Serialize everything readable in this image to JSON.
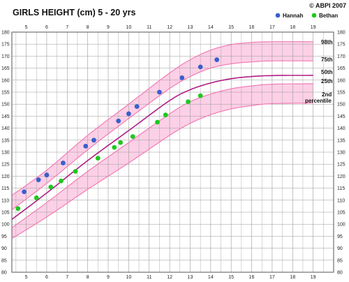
{
  "chart_data": {
    "type": "scatter",
    "title": "GIRLS HEIGHT (cm)  5 - 20 yrs",
    "copyright": "© ABPI 2007",
    "x_ticks": [
      5,
      6,
      7,
      8,
      9,
      10,
      11,
      12,
      13,
      14,
      15,
      16,
      17,
      18,
      19
    ],
    "y_ticks": [
      80,
      85,
      90,
      95,
      100,
      105,
      110,
      115,
      120,
      125,
      130,
      135,
      140,
      145,
      150,
      155,
      160,
      165,
      170,
      175,
      180
    ],
    "xlim": [
      4.3,
      20
    ],
    "ylim": [
      80,
      180
    ],
    "grid": true,
    "legend_position": "top-right",
    "percentile_labels": [
      "98th",
      "75th",
      "50th",
      "25th",
      "2nd",
      "percentile"
    ],
    "series": [
      {
        "name": "Hannah",
        "color": "#3a5fcd",
        "points": [
          [
            4.9,
            113.5
          ],
          [
            5.6,
            118.5
          ],
          [
            6.0,
            120.5
          ],
          [
            6.8,
            125.5
          ],
          [
            7.9,
            132.5
          ],
          [
            8.3,
            135
          ],
          [
            9.5,
            143
          ],
          [
            10.0,
            146
          ],
          [
            10.4,
            149
          ],
          [
            11.5,
            155
          ],
          [
            12.6,
            161
          ],
          [
            13.5,
            165.5
          ],
          [
            14.3,
            168.5
          ]
        ]
      },
      {
        "name": "Bethan",
        "color": "#1ec81e",
        "points": [
          [
            4.6,
            106.5
          ],
          [
            5.5,
            111
          ],
          [
            6.2,
            115.5
          ],
          [
            6.7,
            118
          ],
          [
            7.4,
            122
          ],
          [
            8.5,
            127.5
          ],
          [
            9.3,
            132
          ],
          [
            9.6,
            134
          ],
          [
            10.2,
            136.5
          ],
          [
            11.4,
            142.5
          ],
          [
            11.8,
            145.5
          ],
          [
            12.9,
            151
          ],
          [
            13.5,
            153.5
          ]
        ]
      }
    ],
    "percentile_curves": {
      "p98": [
        [
          4.3,
          112
        ],
        [
          6,
          122.5
        ],
        [
          8,
          137
        ],
        [
          10,
          150
        ],
        [
          12,
          163
        ],
        [
          13,
          168.5
        ],
        [
          14,
          172.5
        ],
        [
          15,
          174.8
        ],
        [
          16,
          175.7
        ],
        [
          17,
          176
        ],
        [
          19,
          176
        ]
      ],
      "p75": [
        [
          4.3,
          106
        ],
        [
          6,
          117
        ],
        [
          8,
          131
        ],
        [
          10,
          144
        ],
        [
          12,
          156.5
        ],
        [
          13,
          161.5
        ],
        [
          14,
          165
        ],
        [
          15,
          166.8
        ],
        [
          16,
          167.6
        ],
        [
          17,
          168
        ],
        [
          19,
          168
        ]
      ],
      "p50": [
        [
          4.3,
          102
        ],
        [
          6,
          113
        ],
        [
          8,
          126.5
        ],
        [
          10,
          139
        ],
        [
          12,
          151.5
        ],
        [
          13,
          156
        ],
        [
          14,
          158.8
        ],
        [
          15,
          160.6
        ],
        [
          16,
          161.5
        ],
        [
          17,
          161.9
        ],
        [
          19,
          162
        ]
      ],
      "p25": [
        [
          4.3,
          98.5
        ],
        [
          6,
          109
        ],
        [
          8,
          122
        ],
        [
          10,
          134
        ],
        [
          12,
          146
        ],
        [
          13,
          151
        ],
        [
          14,
          154.2
        ],
        [
          15,
          156.4
        ],
        [
          16,
          157.6
        ],
        [
          17,
          158.3
        ],
        [
          19,
          158.5
        ]
      ],
      "p2": [
        [
          4.3,
          94
        ],
        [
          6,
          103
        ],
        [
          8,
          114.5
        ],
        [
          10,
          125.5
        ],
        [
          12,
          137
        ],
        [
          13,
          142
        ],
        [
          14,
          145.6
        ],
        [
          15,
          148
        ],
        [
          16,
          149.4
        ],
        [
          17,
          150.2
        ],
        [
          19,
          150.5
        ]
      ]
    },
    "colors": {
      "band": "#fcd0e6",
      "band_line": "#f27bb5",
      "median_line": "#b01e86",
      "grid": "#999999",
      "border": "#555555"
    }
  }
}
